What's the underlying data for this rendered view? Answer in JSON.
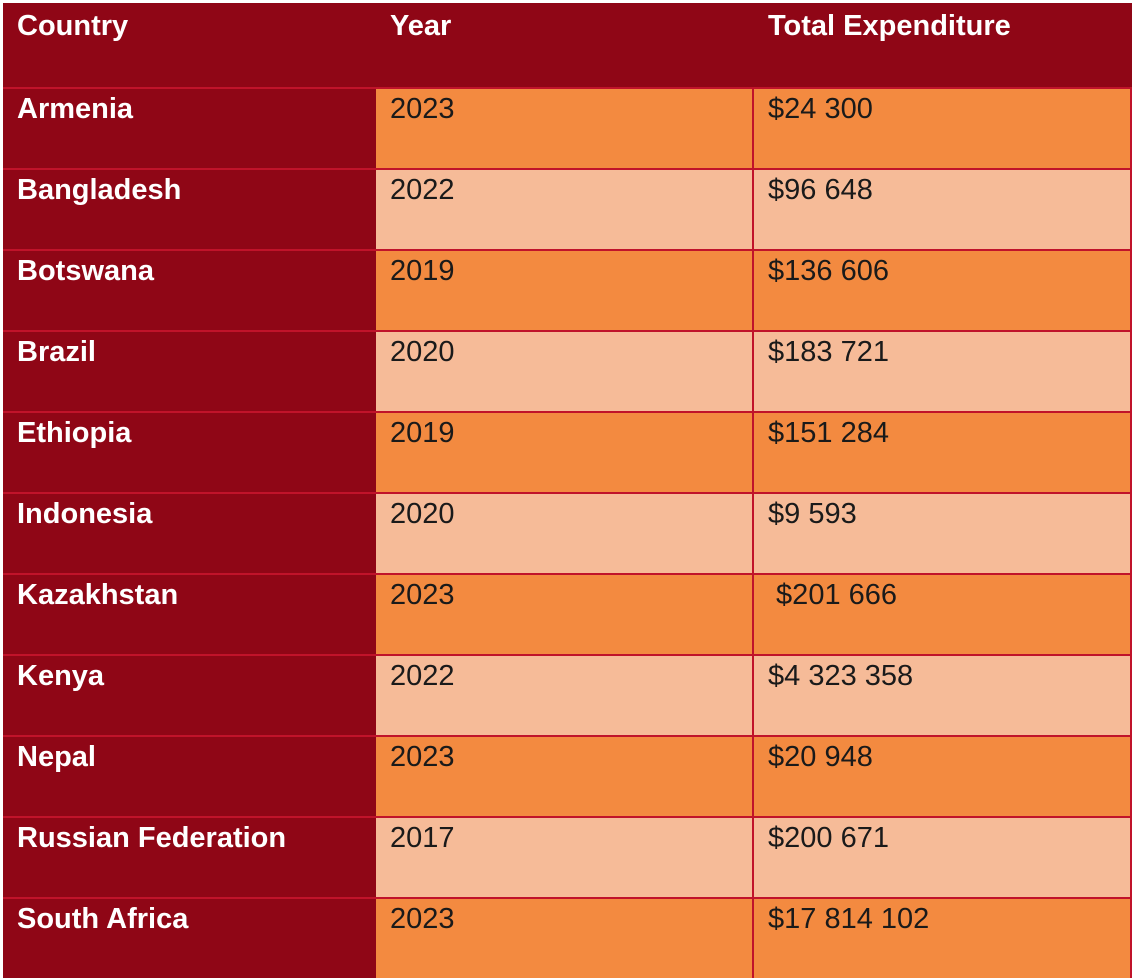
{
  "table": {
    "headers": [
      "Country",
      "Year",
      "Total Expenditure"
    ],
    "rows": [
      {
        "country": "Armenia",
        "year": "2023",
        "expenditure": "$24 300"
      },
      {
        "country": "Bangladesh",
        "year": "2022",
        "expenditure": "$96 648"
      },
      {
        "country": "Botswana",
        "year": "2019",
        "expenditure": "$136 606"
      },
      {
        "country": "Brazil",
        "year": "2020",
        "expenditure": "$183 721"
      },
      {
        "country": "Ethiopia",
        "year": "2019",
        "expenditure": "$151 284"
      },
      {
        "country": "Indonesia",
        "year": "2020",
        "expenditure": "$9 593"
      },
      {
        "country": "Kazakhstan",
        "year": "2023",
        "expenditure": " $201 666"
      },
      {
        "country": "Kenya",
        "year": "2022",
        "expenditure": "$4 323 358"
      },
      {
        "country": "Nepal",
        "year": "2023",
        "expenditure": "$20 948"
      },
      {
        "country": "Russian Federation",
        "year": "2017",
        "expenditure": "$200 671"
      },
      {
        "country": "South Africa",
        "year": "2023",
        "expenditure": "$17 814 102"
      }
    ]
  },
  "colors": {
    "header_bg": "#8f0616",
    "row_dark": "#f38a40",
    "row_light": "#f6bb98",
    "grid_line": "#c0132a"
  }
}
